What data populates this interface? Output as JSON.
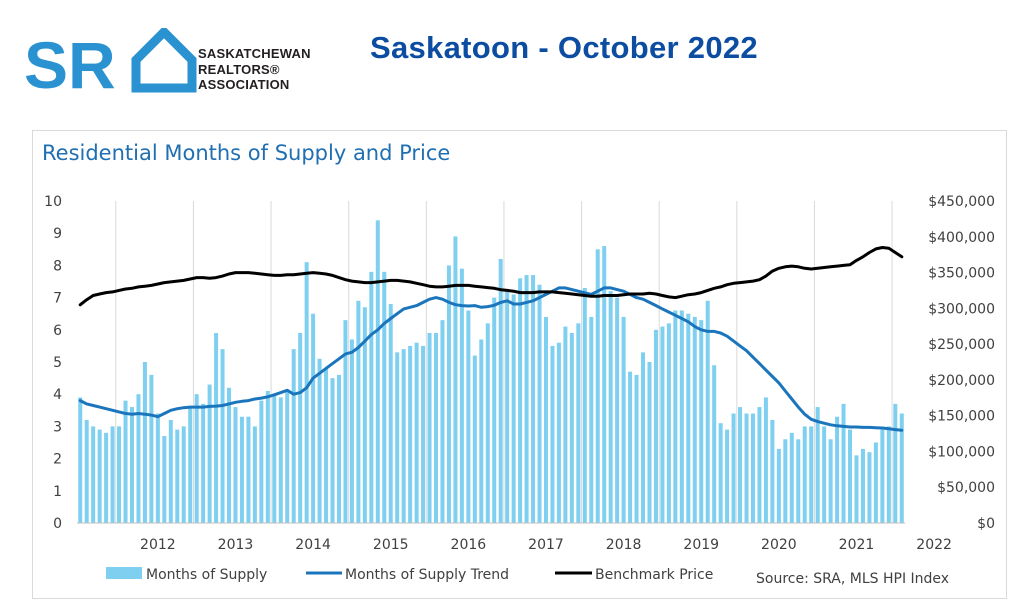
{
  "header": {
    "logo_letters": "SR",
    "org_lines": [
      "SASKATCHEWAN",
      "REALTORS®",
      "ASSOCIATION"
    ],
    "title": "Saskatoon - October 2022"
  },
  "colors": {
    "bars": "#7fd0f0",
    "trend": "#1a75bc",
    "benchmark": "#000000",
    "title_blue": "#0c4da2",
    "logo_blue": "#2a92d0"
  },
  "chart_data": {
    "type": "bar+line",
    "title": "Residential Months of Supply and Price",
    "source": "Source: SRA, MLS HPI Index",
    "x_tick_labels": [
      "2012",
      "2013",
      "2014",
      "2015",
      "2016",
      "2017",
      "2018",
      "2019",
      "2020",
      "2021",
      "2022"
    ],
    "x_start": "2011-07",
    "x_end": "2022-10",
    "y_left": {
      "range": [
        0,
        10
      ],
      "ticks": [
        "0",
        "1",
        "2",
        "3",
        "4",
        "5",
        "6",
        "7",
        "8",
        "9",
        "10"
      ]
    },
    "y_right": {
      "range": [
        0,
        450000
      ],
      "ticks": [
        "$0",
        "$50,000",
        "$100,000",
        "$150,000",
        "$200,000",
        "$250,000",
        "$300,000",
        "$350,000",
        "$400,000",
        "$450,000"
      ]
    },
    "legend": [
      "Months of Supply",
      "Months of Supply Trend",
      "Benchmark Price"
    ],
    "grid": "vertical-at-years",
    "months_of_supply": [
      3.9,
      3.2,
      3.0,
      2.9,
      2.8,
      3.0,
      3.0,
      3.8,
      3.6,
      4.0,
      5.0,
      4.6,
      3.4,
      2.7,
      3.2,
      2.9,
      3.0,
      3.6,
      4.0,
      3.7,
      4.3,
      5.9,
      5.4,
      4.2,
      3.6,
      3.3,
      3.3,
      3.0,
      3.8,
      4.1,
      4.0,
      3.9,
      4.1,
      5.4,
      5.9,
      8.1,
      6.5,
      5.1,
      4.8,
      4.5,
      4.6,
      6.3,
      5.7,
      6.9,
      6.7,
      7.8,
      9.4,
      7.8,
      6.8,
      5.3,
      5.4,
      5.5,
      5.6,
      5.5,
      5.9,
      5.9,
      6.3,
      8.0,
      8.9,
      7.9,
      6.6,
      5.2,
      5.7,
      6.2,
      7.0,
      8.2,
      7.2,
      7.1,
      7.6,
      7.7,
      7.7,
      7.4,
      6.4,
      5.5,
      5.6,
      6.1,
      5.9,
      6.2,
      7.3,
      6.4,
      8.5,
      8.6,
      7.2,
      7.0,
      6.4,
      4.7,
      4.6,
      5.3,
      5.0,
      6.0,
      6.1,
      6.2,
      6.6,
      6.6,
      6.5,
      6.4,
      6.3,
      6.9,
      4.9,
      3.1,
      2.9,
      3.4,
      3.6,
      3.4,
      3.4,
      3.6,
      3.9,
      3.2,
      2.3,
      2.6,
      2.8,
      2.6,
      3.0,
      3.0,
      3.6,
      3.0,
      2.6,
      3.3,
      3.7,
      2.9,
      2.1,
      2.3,
      2.2,
      2.5,
      2.9,
      3.0,
      3.7,
      3.4
    ],
    "months_of_supply_trend": [
      3.8,
      3.7,
      3.65,
      3.6,
      3.55,
      3.5,
      3.45,
      3.4,
      3.38,
      3.4,
      3.38,
      3.35,
      3.3,
      3.4,
      3.5,
      3.55,
      3.58,
      3.6,
      3.6,
      3.6,
      3.62,
      3.63,
      3.65,
      3.7,
      3.75,
      3.78,
      3.8,
      3.85,
      3.88,
      3.92,
      3.98,
      4.05,
      4.12,
      4.0,
      4.05,
      4.2,
      4.5,
      4.65,
      4.8,
      4.95,
      5.1,
      5.25,
      5.3,
      5.45,
      5.65,
      5.85,
      6.0,
      6.2,
      6.35,
      6.5,
      6.65,
      6.7,
      6.75,
      6.85,
      6.95,
      7.0,
      6.95,
      6.85,
      6.78,
      6.75,
      6.74,
      6.75,
      6.7,
      6.72,
      6.76,
      6.85,
      6.9,
      6.8,
      6.8,
      6.85,
      6.9,
      7.0,
      7.1,
      7.2,
      7.3,
      7.3,
      7.25,
      7.2,
      7.15,
      7.1,
      7.2,
      7.3,
      7.3,
      7.25,
      7.2,
      7.1,
      7.0,
      6.95,
      6.85,
      6.75,
      6.65,
      6.55,
      6.45,
      6.35,
      6.25,
      6.1,
      6.0,
      5.95,
      5.95,
      5.9,
      5.8,
      5.65,
      5.5,
      5.35,
      5.15,
      4.95,
      4.75,
      4.55,
      4.35,
      4.1,
      3.85,
      3.6,
      3.38,
      3.22,
      3.15,
      3.1,
      3.05,
      3.02,
      3.0,
      2.98,
      2.98,
      2.97,
      2.97,
      2.96,
      2.95,
      2.93,
      2.9,
      2.88
    ],
    "benchmark_price": [
      305000,
      312000,
      318000,
      320000,
      322000,
      323000,
      325000,
      327000,
      328000,
      330000,
      331000,
      332000,
      334000,
      336000,
      337000,
      338000,
      339000,
      341000,
      343000,
      343000,
      342000,
      343000,
      345000,
      348000,
      350000,
      350000,
      350000,
      349000,
      348000,
      347000,
      346000,
      346000,
      347000,
      347000,
      348000,
      349000,
      350000,
      349000,
      348000,
      346000,
      343000,
      340000,
      338000,
      337000,
      336000,
      336000,
      337000,
      338000,
      339000,
      339000,
      338000,
      337000,
      335000,
      333000,
      331000,
      330000,
      330000,
      331000,
      332000,
      332000,
      332000,
      331000,
      330000,
      329000,
      328000,
      326000,
      325000,
      324000,
      322000,
      322000,
      322000,
      323000,
      323000,
      323000,
      322000,
      321000,
      320000,
      319000,
      318000,
      317000,
      317000,
      318000,
      318000,
      318000,
      319000,
      320000,
      320000,
      320000,
      321000,
      320000,
      318000,
      316000,
      315000,
      317000,
      319000,
      320000,
      322000,
      325000,
      328000,
      330000,
      333000,
      335000,
      336000,
      337000,
      338000,
      340000,
      345000,
      352000,
      356000,
      358000,
      359000,
      358000,
      356000,
      355000,
      356000,
      357000,
      358000,
      359000,
      360000,
      361000,
      367000,
      372000,
      378000,
      383000,
      385000,
      384000,
      378000,
      372000
    ]
  }
}
